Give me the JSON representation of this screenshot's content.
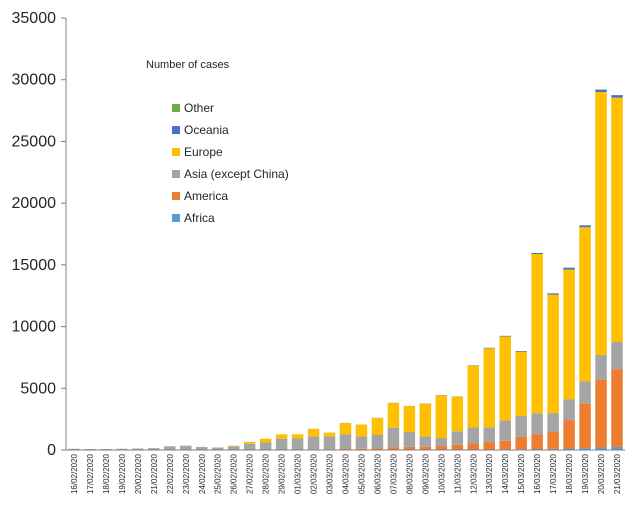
{
  "chart_data": {
    "type": "bar",
    "stacked": true,
    "title": "Number of cases",
    "xlabel": "",
    "ylabel": "",
    "ylim": [
      0,
      35000
    ],
    "yticks": [
      0,
      5000,
      10000,
      15000,
      20000,
      25000,
      30000,
      35000
    ],
    "ytick_labels": [
      "0",
      "5000",
      "10000",
      "15000",
      "20000",
      "25000",
      "30000",
      "35000"
    ],
    "grid": false,
    "legend_position": "upper-left",
    "categories": [
      "16/02/2020",
      "17/02/2020",
      "18/02/2020",
      "19/02/2020",
      "20/02/2020",
      "21/02/2020",
      "22/02/2020",
      "23/02/2020",
      "24/02/2020",
      "25/02/2020",
      "26/02/2020",
      "27/02/2020",
      "28/02/2020",
      "29/02/2020",
      "01/03/2020",
      "02/03/2020",
      "03/03/2020",
      "04/03/2020",
      "05/03/2020",
      "06/03/2020",
      "07/03/2020",
      "08/03/2020",
      "09/03/2020",
      "10/03/2020",
      "11/03/2020",
      "12/03/2020",
      "13/03/2020",
      "14/03/2020",
      "15/03/2020",
      "16/03/2020",
      "17/03/2020",
      "18/03/2020",
      "19/03/2020",
      "20/03/2020",
      "21/03/2020"
    ],
    "series": [
      {
        "name": "Africa",
        "color": "#5b9bd5",
        "values": [
          0,
          0,
          0,
          0,
          0,
          0,
          0,
          0,
          0,
          0,
          0,
          0,
          0,
          0,
          0,
          0,
          0,
          0,
          0,
          0,
          10,
          10,
          10,
          20,
          20,
          30,
          40,
          50,
          60,
          80,
          90,
          120,
          150,
          200,
          250
        ]
      },
      {
        "name": "America",
        "color": "#ed7d31",
        "values": [
          0,
          0,
          0,
          0,
          0,
          0,
          0,
          0,
          0,
          0,
          0,
          10,
          10,
          20,
          30,
          50,
          50,
          80,
          100,
          150,
          200,
          250,
          250,
          300,
          400,
          500,
          600,
          700,
          1000,
          1200,
          1400,
          2300,
          3600,
          5500,
          6300
        ]
      },
      {
        "name": "Asia (except China)",
        "color": "#a5a5a5",
        "values": [
          100,
          80,
          80,
          100,
          120,
          150,
          300,
          350,
          250,
          200,
          300,
          500,
          600,
          900,
          900,
          1050,
          1050,
          1200,
          1000,
          1100,
          1600,
          1200,
          850,
          650,
          1100,
          1300,
          1200,
          1650,
          1700,
          1700,
          1500,
          1700,
          1800,
          2000,
          2200
        ]
      },
      {
        "name": "Europe",
        "color": "#ffc000",
        "values": [
          0,
          0,
          0,
          0,
          0,
          0,
          0,
          0,
          0,
          0,
          50,
          150,
          300,
          350,
          350,
          600,
          300,
          900,
          950,
          1350,
          2000,
          2100,
          2650,
          3450,
          2800,
          5000,
          6400,
          6800,
          5200,
          12900,
          9600,
          10500,
          12500,
          21300,
          19800
        ]
      },
      {
        "name": "Oceania",
        "color": "#4472c4",
        "values": [
          0,
          0,
          0,
          0,
          0,
          0,
          0,
          0,
          0,
          0,
          0,
          0,
          0,
          0,
          0,
          10,
          10,
          10,
          10,
          10,
          10,
          10,
          10,
          20,
          20,
          30,
          40,
          50,
          60,
          80,
          100,
          150,
          150,
          200,
          200
        ]
      },
      {
        "name": "Other",
        "color": "#70ad47",
        "values": [
          0,
          0,
          0,
          0,
          0,
          0,
          0,
          0,
          0,
          0,
          0,
          0,
          0,
          0,
          0,
          0,
          0,
          0,
          0,
          0,
          0,
          0,
          0,
          0,
          0,
          0,
          0,
          0,
          0,
          0,
          0,
          0,
          0,
          0,
          0
        ]
      }
    ],
    "legend_order": [
      "Other",
      "Oceania",
      "Europe",
      "Asia (except China)",
      "America",
      "Africa"
    ]
  }
}
